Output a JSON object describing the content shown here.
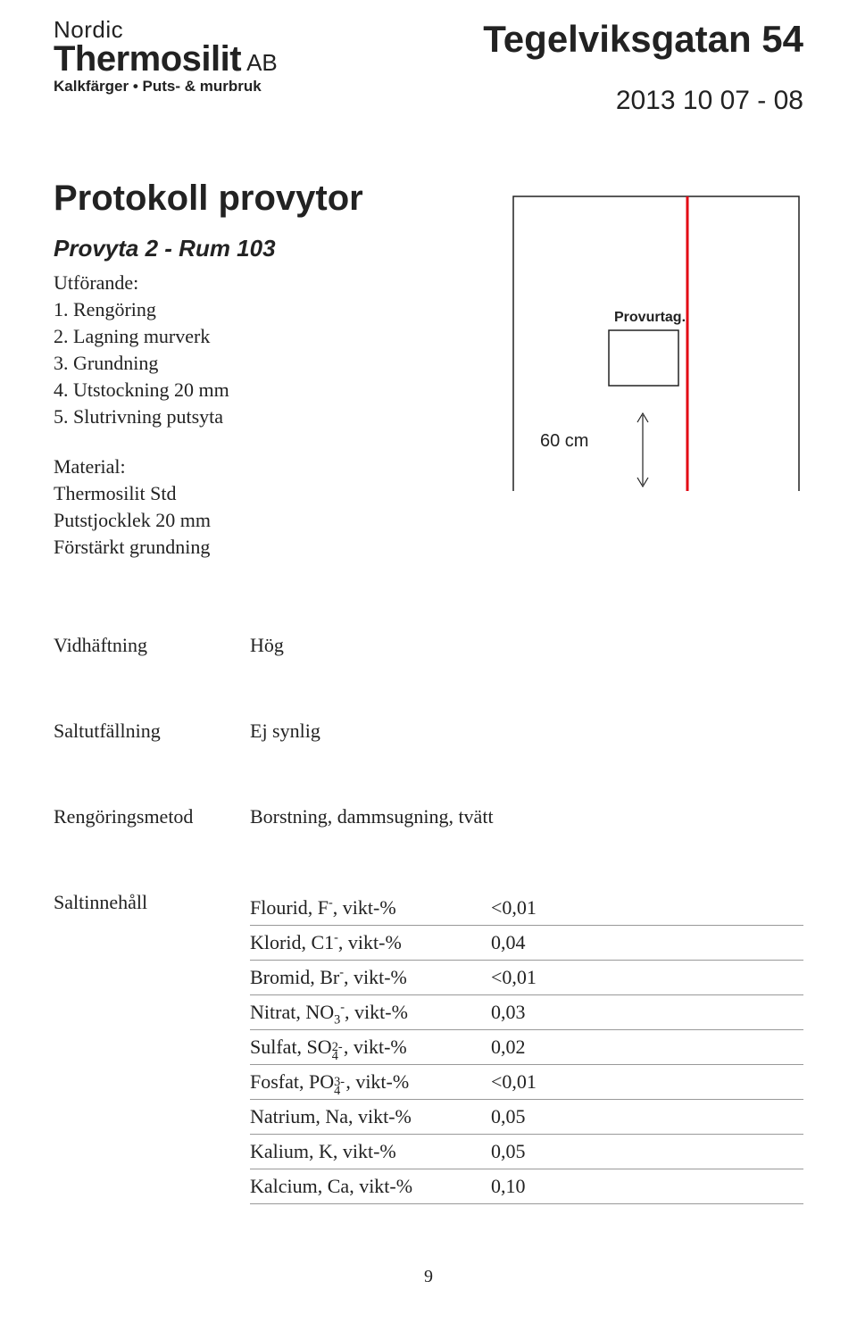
{
  "logo": {
    "line1": "Nordic",
    "line2a": "Thermosilit",
    "line2b": "AB",
    "line3": "Kalkfärger • Puts- & murbruk"
  },
  "header": {
    "title": "Tegelviksgatan 54",
    "date": "2013 10 07 - 08"
  },
  "protokoll": {
    "heading": "Protokoll provytor",
    "subheading": "Provyta 2 - Rum 103",
    "utforande_label": "Utförande:",
    "steps": [
      "1. Rengöring",
      "2. Lagning murverk",
      "3. Grundning",
      "4. Utstockning 20 mm",
      "5. Slutrivning putsyta"
    ],
    "material_label": "Material:",
    "material_lines": [
      "Thermosilit Std",
      "Putstjocklek 20 mm",
      "Förstärkt grundning"
    ]
  },
  "diagram": {
    "provurtag_label": "Provurtag.",
    "dimension_label": "60 cm",
    "frame_stroke": "#222222",
    "red_stroke": "#e30613",
    "arrow_stroke": "#222222",
    "background": "#ffffff"
  },
  "properties": {
    "vidhaftning_label": "Vidhäftning",
    "vidhaftning_value": "Hög",
    "saltutfallning_label": "Saltutfällning",
    "saltutfallning_value": "Ej synlig",
    "rengoringsmetod_label": "Rengöringsmetod",
    "rengoringsmetod_value": "Borstning, dammsugning, tvätt"
  },
  "salt": {
    "section_label": "Saltinnehåll",
    "rows": [
      {
        "label_html": "Flourid, F<sup>-</sup>, vikt-%",
        "value": "<0,01"
      },
      {
        "label_html": "Klorid, C1<sup>-</sup>, vikt-%",
        "value": "0,04"
      },
      {
        "label_html": "Bromid, Br<sup>-</sup>, vikt-%",
        "value": "<0,01"
      },
      {
        "label_html": "Nitrat, NO<sub>3</sub><sup>-</sup>, vikt-%",
        "value": "0,03"
      },
      {
        "label_html": "Sulfat, SO<span class=\"subsup\"><sub>4</sub><sup>2-</sup></span>, vikt-%",
        "value": "0,02"
      },
      {
        "label_html": "Fosfat, PO<span class=\"subsup\"><sub>4</sub><sup>3-</sup></span>, vikt-%",
        "value": "<0,01"
      },
      {
        "label_html": "Natrium, Na, vikt-%",
        "value": "0,05"
      },
      {
        "label_html": "Kalium, K, vikt-%",
        "value": "0,05"
      },
      {
        "label_html": "Kalcium, Ca, vikt-%",
        "value": "0,10"
      }
    ]
  },
  "page_number": "9"
}
